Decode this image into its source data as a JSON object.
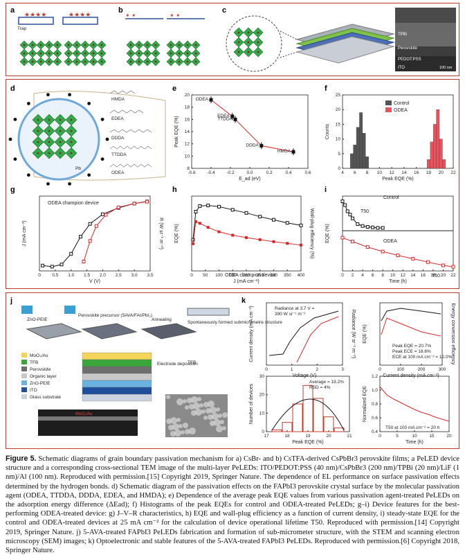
{
  "panel_labels": {
    "a": "a",
    "b": "b",
    "c": "c",
    "d": "d",
    "e": "e",
    "f": "f",
    "g": "g",
    "h": "h",
    "i": "i",
    "j": "j",
    "k": "k"
  },
  "top": {
    "trap_label": "Trap",
    "tem_layers": [
      "TPBi",
      "Perovskite",
      "PEDOT:PSS",
      "ITO"
    ],
    "scale_bar": "100 nm"
  },
  "d": {
    "molecules": [
      "HMDA",
      "EDEA",
      "DDDA",
      "TTDDA",
      "ODEA"
    ],
    "legend": [
      "Pb",
      "Br",
      "A"
    ]
  },
  "e": {
    "ylabel": "Peak EQE (%)",
    "xlabel": "E_ad (eV)",
    "chart_data": {
      "type": "scatter",
      "xlabel": "Ead (eV)",
      "ylabel": "Peak EQE (%)",
      "xlim": [
        -0.6,
        0.6
      ],
      "ylim": [
        8,
        20
      ],
      "points": [
        {
          "label": "ODEA",
          "x": -0.4,
          "y": 19.2
        },
        {
          "label": "EDEA",
          "x": -0.18,
          "y": 16.5
        },
        {
          "label": "TTDDA",
          "x": -0.15,
          "y": 16.0
        },
        {
          "label": "DDDA",
          "x": 0.12,
          "y": 11.7
        },
        {
          "label": "HMDA",
          "x": 0.45,
          "y": 10.7
        }
      ],
      "xticks": [
        "-0.6",
        "-0.4",
        "-0.2",
        "0.0",
        "0.2",
        "0.4",
        "0.6"
      ],
      "yticks": [
        "8",
        "10",
        "12",
        "14",
        "16",
        "18",
        "20"
      ]
    }
  },
  "f": {
    "ylabel": "Counts",
    "xlabel": "Peak EQE (%)",
    "legend": [
      "Control",
      "ODEA"
    ],
    "chart_data": {
      "type": "bar",
      "series": [
        {
          "name": "Control",
          "color": "#555555",
          "x": [
            5.5,
            6,
            6.5,
            7,
            7.5,
            8
          ],
          "values": [
            5,
            8,
            14,
            19,
            12,
            4
          ]
        },
        {
          "name": "ODEA",
          "color": "#e8535c",
          "x": [
            18,
            18.5,
            19,
            19.5,
            20,
            20.5
          ],
          "values": [
            3,
            9,
            15,
            20,
            10,
            3
          ]
        }
      ],
      "xlim": [
        4,
        22
      ],
      "ylim": [
        0,
        25
      ],
      "xticks": [
        "4",
        "6",
        "8",
        "10",
        "12",
        "14",
        "16",
        "18",
        "20",
        "22"
      ],
      "yticks": [
        "0",
        "5",
        "10",
        "15",
        "20",
        "25"
      ]
    }
  },
  "g": {
    "title": "ODEA champion device",
    "ylabel": "J (mA cm⁻²)",
    "y2label": "R (W sr⁻¹ m⁻²)",
    "xlabel": "V (V)",
    "chart_data": {
      "type": "line",
      "xlim": [
        0,
        3.5
      ],
      "xticks": [
        "0",
        "0.5",
        "1.0",
        "1.5",
        "2.0",
        "2.5",
        "3.0",
        "3.5"
      ],
      "J": [
        [
          0.1,
          -3.5
        ],
        [
          0.4,
          -3.6
        ],
        [
          0.7,
          -3.4
        ],
        [
          1.0,
          -2.4
        ],
        [
          1.3,
          -0.8
        ],
        [
          1.6,
          0.4
        ],
        [
          2.0,
          1.3
        ],
        [
          2.5,
          1.9
        ],
        [
          3.0,
          2.3
        ],
        [
          3.4,
          2.5
        ]
      ],
      "R": [
        [
          1.4,
          -1.5
        ],
        [
          1.6,
          -0.4
        ],
        [
          1.8,
          0.4
        ],
        [
          2.1,
          1.0
        ],
        [
          2.5,
          1.4
        ],
        [
          3.0,
          1.6
        ],
        [
          3.4,
          1.7
        ]
      ]
    }
  },
  "h": {
    "title": "ODEA champion device",
    "ylabel": "EQE (%)",
    "y2label": "Wall-plug efficiency (%)",
    "xlabel": "J (mA cm⁻²)",
    "chart_data": {
      "type": "line",
      "xlim": [
        0,
        400
      ],
      "xticks": [
        "0",
        "50",
        "100",
        "150",
        "200",
        "250",
        "300",
        "350",
        "400"
      ],
      "ylim": [
        0,
        24
      ],
      "y2lim": [
        0,
        22
      ],
      "EQE": [
        [
          5,
          10
        ],
        [
          15,
          19
        ],
        [
          30,
          20.8
        ],
        [
          60,
          21
        ],
        [
          100,
          20.6
        ],
        [
          150,
          19.6
        ],
        [
          200,
          18.6
        ],
        [
          250,
          17.4
        ],
        [
          300,
          16.4
        ],
        [
          350,
          15.4
        ],
        [
          400,
          14.6
        ]
      ],
      "WPE": [
        [
          5,
          8
        ],
        [
          15,
          14.5
        ],
        [
          30,
          14
        ],
        [
          60,
          12.8
        ],
        [
          100,
          11.5
        ],
        [
          150,
          10.5
        ],
        [
          200,
          9.8
        ],
        [
          250,
          9.2
        ],
        [
          300,
          8.6
        ],
        [
          350,
          8.1
        ],
        [
          400,
          7.6
        ]
      ]
    }
  },
  "i": {
    "ylabel": "EQE (%)",
    "xlabel": "Time (h)",
    "t50a": "T50",
    "t50b": "T50",
    "legend": [
      "Control",
      "ODEA"
    ],
    "chart_data": {
      "type": "line",
      "xlim": [
        0,
        22
      ],
      "xticks": [
        "0",
        "2",
        "4",
        "6",
        "8",
        "10",
        "12",
        "14",
        "16",
        "18",
        "20",
        "22"
      ],
      "Control": [
        [
          0,
          6.2
        ],
        [
          0.5,
          5.4
        ],
        [
          1,
          4.1
        ],
        [
          1.5,
          3.4
        ],
        [
          2,
          2.6
        ],
        [
          3,
          1.4
        ],
        [
          4,
          1
        ],
        [
          5,
          0.8
        ],
        [
          6,
          0.7
        ],
        [
          7,
          0.6
        ],
        [
          8,
          0.6
        ]
      ],
      "ODEA": [
        [
          0,
          20
        ],
        [
          2,
          18.6
        ],
        [
          5,
          16.6
        ],
        [
          8,
          15
        ],
        [
          11,
          13.6
        ],
        [
          14,
          12.4
        ],
        [
          17,
          11.2
        ],
        [
          20,
          10
        ],
        [
          22,
          9.5
        ]
      ]
    }
  },
  "j": {
    "labels": [
      "ZnO-PEIE",
      "Perovskite precursor (5AVA/FAI/PbI₂)",
      "Annealing",
      "Spontaneously formed submicrometre structure",
      "TFB",
      "Electrode deposition"
    ],
    "stack": [
      "MoO₃/Au",
      "TFB",
      "Perovskite",
      "Organic layer",
      "ZnO-PEIE",
      "ITO",
      "Glass substrate"
    ],
    "tem": "MoO₃/Au"
  },
  "k": {
    "jv": {
      "text1": "Radiance at 3.7 V =",
      "text2": "390 W sr⁻¹ m⁻²",
      "ylabel": "Current density (mA cm⁻²)",
      "y2label": "Radiance (W sr⁻¹ m⁻²)",
      "xlabel": "Voltage (V)"
    },
    "eqe": {
      "ylabel": "EQE (%)",
      "y2label": "Energy conversion efficiency",
      "xlabel": "Current density (mA cm⁻²)",
      "notes": [
        "Peak EQE = 20.7%",
        "Peak ECE = 18.6%",
        "ECE at 100 mA cm⁻² = 12.0%"
      ]
    },
    "hist": {
      "ylabel": "Number of devices",
      "xlabel": "Peak EQE (%)",
      "notes": [
        "Average = 19.2%",
        "RSD = 4%"
      ],
      "chart_data": {
        "type": "bar",
        "x": [
          17.5,
          18,
          18.5,
          19,
          19.5,
          20,
          20.5
        ],
        "values": [
          1,
          5,
          15,
          25,
          18,
          8,
          2
        ],
        "xlim": [
          17,
          21
        ],
        "ylim": [
          0,
          30
        ]
      }
    },
    "stab": {
      "ylabel": "Normalized EQE",
      "xlabel": "Time (h)",
      "note": "T50 at 100 mA cm⁻² = 20 h",
      "chart_data": {
        "type": "line",
        "x": [
          0,
          2,
          4,
          6,
          8,
          10,
          12,
          14,
          16,
          18,
          20
        ],
        "values": [
          1.05,
          0.93,
          0.87,
          0.82,
          0.77,
          0.72,
          0.68,
          0.65,
          0.61,
          0.58,
          0.55
        ],
        "xlim": [
          0,
          20
        ],
        "ylim": [
          0.4,
          1.2
        ]
      }
    }
  },
  "caption": {
    "title": "Figure 5.",
    "body": "Schematic diagrams of grain boundary passivation mechanism for a) CsBr- and b) CsTFA-derived CsPbBr3 perovskite films; a PeLED device structure and a corresponding cross-sectional TEM image of the multi-layer PeLEDs: ITO/PEDOT:PSS (40 nm)/CsPbBr3 (200 nm)/TPBi (20 nm)/LiF (1 nm)/Al (100 nm). Reproduced with permission.[15] Copyright 2019, Springer Nature. The dependence of EL performance on surface passivation effects determined by the hydrogen bonds. d) Schematic diagram of the passivation effects on the FAPbI3 perovskite crystal surface by the molecular passivation agent (ODEA, TTDDA, DDDA, EDEA, and HMDA); e) Dependence of the average peak EQE values from various passivation agent-treated PeLEDs on the adsorption energy difference (ΔEad); f) Histograms of the peak EQEs for control and ODEA-treated PeLEDs; g–i) Device features for the best-performing ODEA-treated device: g) J–V–R characteristics, h) EQE and wall-plug efficiency as a function of current density, i) steady-state EQE for the control and ODEA-treated devices at 25 mA cm⁻² for the calculation of device operational lifetime T50. Reproduced with permission.[14] Copyright 2019, Springer Nature. j) 5-AVA-treated FAPbI3 PeLEDs fabrication and formation of sub-micrometer structure, with the STEM and scanning electron microscopy (SEM) images; k) Optoelectronic and stable features of the 5-AVA-treated FAPbI3 PeLEDs. Reproduced with permission.[6] Copyright 2018, Springer Nature."
  }
}
